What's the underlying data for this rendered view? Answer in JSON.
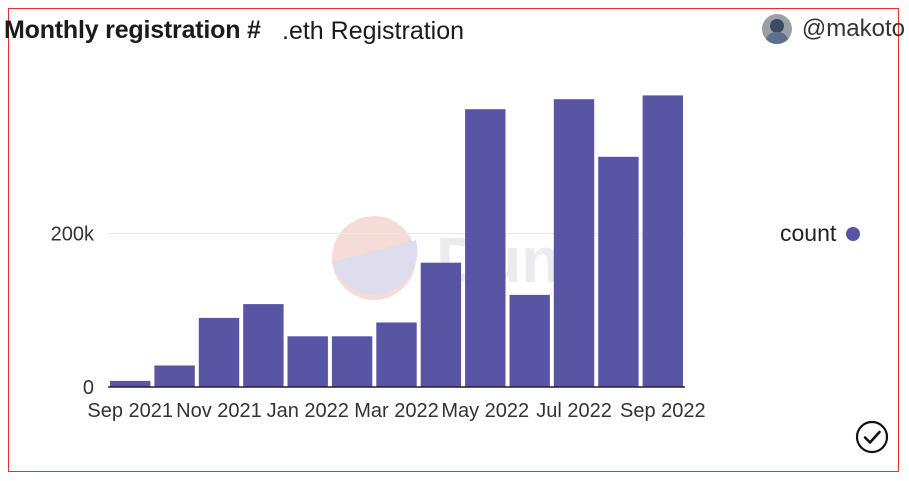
{
  "header": {
    "title": "Monthly registration #",
    "subtitle": ".eth Registration",
    "author": "@makoto"
  },
  "watermark": "Dune",
  "colors": {
    "bar": "#5954a4",
    "gridline": "#e8e8e8",
    "axis": "#222222",
    "border": "#e03030"
  },
  "icons": {
    "avatar": "user-avatar-icon",
    "status": "check-circle-icon"
  },
  "chart_data": {
    "type": "bar",
    "categories": [
      "Sep 2021",
      "Oct 2021",
      "Nov 2021",
      "Dec 2021",
      "Jan 2022",
      "Feb 2022",
      "Mar 2022",
      "Apr 2022",
      "May 2022",
      "Jun 2022",
      "Jul 2022",
      "Aug 2022",
      "Sep 2022"
    ],
    "x_tick_labels": [
      "Sep 2021",
      "Nov 2021",
      "Jan 2022",
      "Mar 2022",
      "May 2022",
      "Jul 2022",
      "Sep 2022"
    ],
    "series": [
      {
        "name": "count",
        "values": [
          8000,
          28000,
          90000,
          108000,
          66000,
          66000,
          84000,
          162000,
          362000,
          120000,
          375000,
          300000,
          380000
        ]
      }
    ],
    "y_ticks": [
      0,
      200000
    ],
    "y_tick_labels": [
      "0",
      "200k"
    ],
    "ylim": [
      0,
      400000
    ],
    "grid": true,
    "legend_position": "right"
  }
}
